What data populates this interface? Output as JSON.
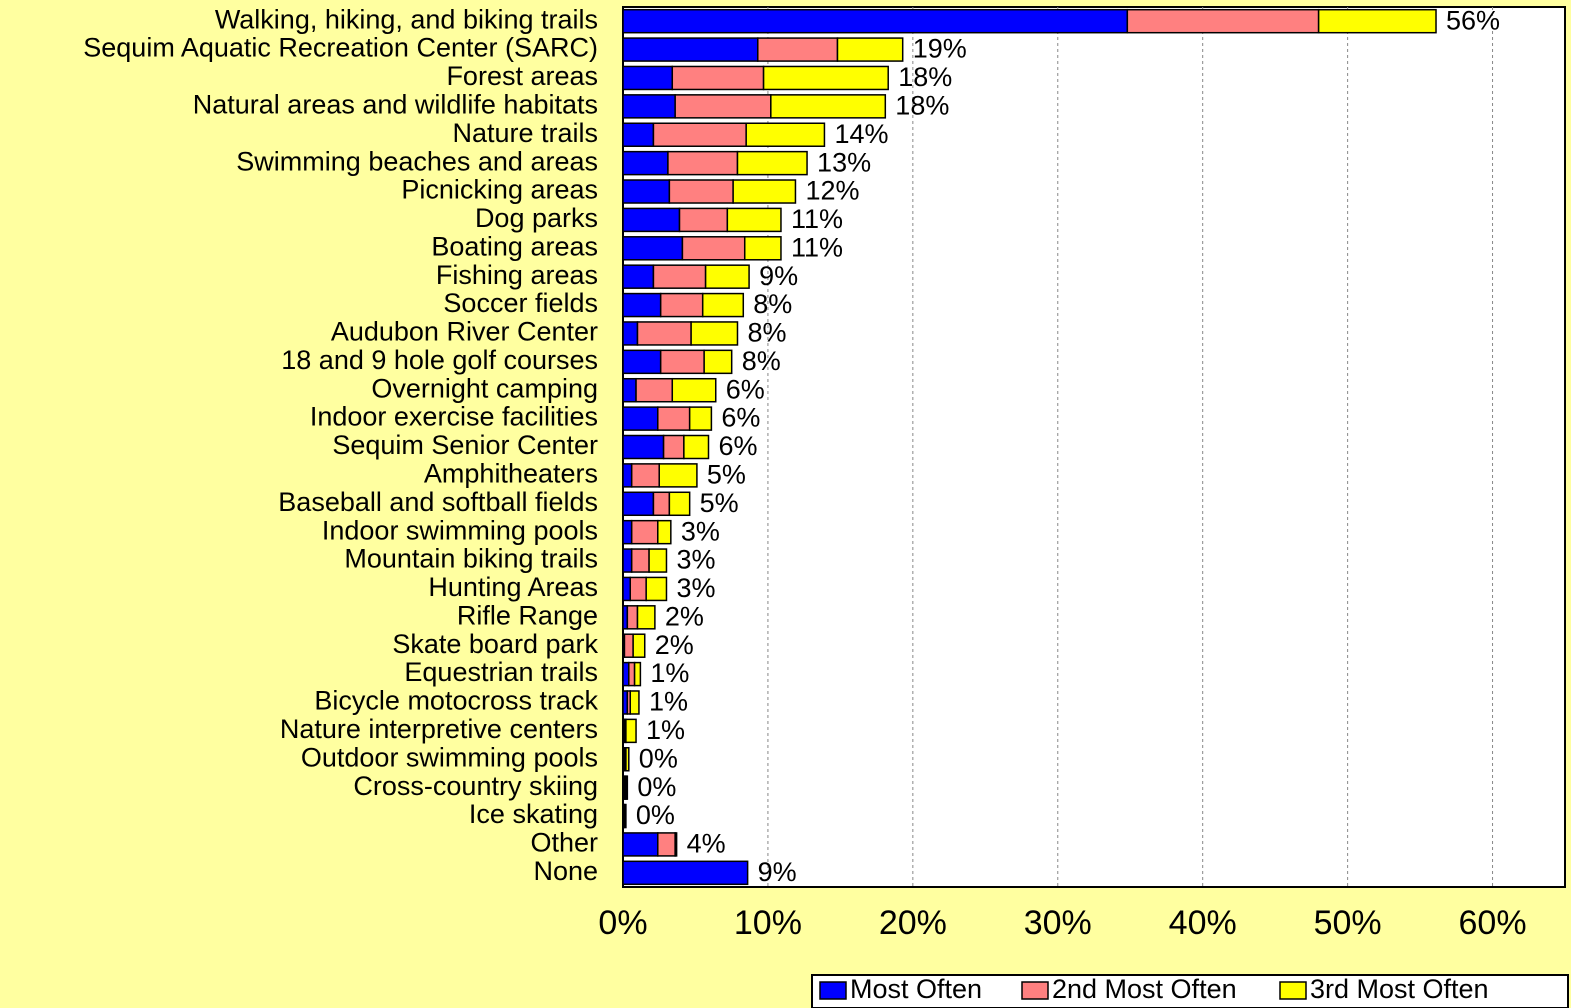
{
  "chart_data": {
    "type": "stacked-barh",
    "categories": [
      "Walking, hiking, and biking trails",
      "Sequim Aquatic Recreation Center (SARC)",
      "Forest areas",
      "Natural areas and wildlife habitats",
      "Nature trails",
      "Swimming beaches and areas",
      "Picnicking areas",
      "Dog parks",
      "Boating areas",
      "Fishing areas",
      "Soccer fields",
      "Audubon River Center",
      "18 and 9 hole golf courses",
      "Overnight camping",
      "Indoor exercise facilities",
      "Sequim Senior Center",
      "Amphitheaters",
      "Baseball and softball fields",
      "Indoor swimming pools",
      "Mountain biking trails",
      "Hunting Areas",
      "Rifle Range",
      "Skate board park",
      "Equestrian trails",
      "Bicycle motocross track",
      "Nature interpretive centers",
      "Outdoor swimming pools",
      "Cross-country skiing",
      "Ice skating",
      "Other",
      "None"
    ],
    "series": [
      {
        "name": "Most Often",
        "color": "#0000ff",
        "values": [
          34.8,
          9.3,
          3.4,
          3.6,
          2.1,
          3.1,
          3.2,
          3.9,
          4.1,
          2.1,
          2.6,
          1.0,
          2.6,
          0.9,
          2.4,
          2.8,
          0.6,
          2.1,
          0.6,
          0.6,
          0.5,
          0.3,
          0.1,
          0.4,
          0.3,
          0.1,
          0.1,
          0.1,
          0.1,
          2.4,
          8.6
        ]
      },
      {
        "name": "2nd Most Often",
        "color": "#ff8080",
        "values": [
          13.2,
          5.5,
          6.3,
          6.6,
          6.4,
          4.8,
          4.4,
          3.3,
          4.3,
          3.6,
          2.9,
          3.7,
          3.0,
          2.5,
          2.2,
          1.4,
          1.9,
          1.1,
          1.8,
          1.2,
          1.1,
          0.7,
          0.6,
          0.4,
          0.2,
          0.1,
          0.1,
          0.1,
          0.0,
          1.2,
          0.0
        ]
      },
      {
        "name": "3rd Most Often",
        "color": "#ffff00",
        "values": [
          8.1,
          4.5,
          8.6,
          7.9,
          5.4,
          4.8,
          4.3,
          3.7,
          2.5,
          3.0,
          2.8,
          3.2,
          1.9,
          3.0,
          1.5,
          1.7,
          2.6,
          1.4,
          0.9,
          1.2,
          1.4,
          1.2,
          0.8,
          0.4,
          0.6,
          0.7,
          0.2,
          0.1,
          0.1,
          0.1,
          0.0
        ]
      }
    ],
    "total_labels": [
      "56%",
      "19%",
      "18%",
      "18%",
      "14%",
      "13%",
      "12%",
      "11%",
      "11%",
      "9%",
      "8%",
      "8%",
      "8%",
      "6%",
      "6%",
      "6%",
      "5%",
      "5%",
      "3%",
      "3%",
      "3%",
      "2%",
      "2%",
      "1%",
      "1%",
      "1%",
      "0%",
      "0%",
      "0%",
      "4%",
      "9%"
    ],
    "xlim": [
      0,
      65
    ],
    "xticks": [
      {
        "value": 0,
        "label": "0%"
      },
      {
        "value": 10,
        "label": "10%"
      },
      {
        "value": 20,
        "label": "20%"
      },
      {
        "value": 30,
        "label": "30%"
      },
      {
        "value": 40,
        "label": "40%"
      },
      {
        "value": 50,
        "label": "50%"
      },
      {
        "value": 60,
        "label": "60%"
      }
    ],
    "grid": true,
    "legend": "bottom-right"
  }
}
